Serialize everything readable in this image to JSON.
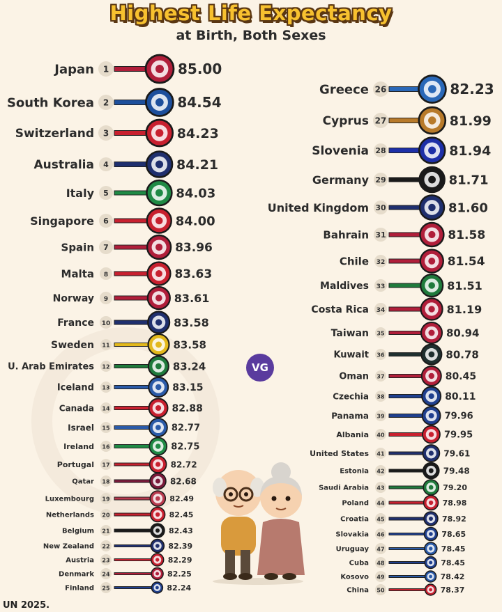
{
  "title": "Highest Life Expectancy",
  "subtitle": "at Birth, Both Sexes",
  "source": "UN 2025.",
  "logo_text": "VG",
  "chart_data": {
    "type": "bar",
    "title": "Highest Life Expectancy",
    "subtitle": "at Birth, Both Sexes",
    "categories": [
      "Japan",
      "South Korea",
      "Switzerland",
      "Australia",
      "Italy",
      "Singapore",
      "Spain",
      "Malta",
      "Norway",
      "France",
      "Sweden",
      "U. Arab Emirates",
      "Iceland",
      "Canada",
      "Israel",
      "Ireland",
      "Portugal",
      "Qatar",
      "Luxembourg",
      "Netherlands",
      "Belgium",
      "New Zealand",
      "Austria",
      "Denmark",
      "Finland",
      "Greece",
      "Cyprus",
      "Slovenia",
      "Germany",
      "United Kingdom",
      "Bahrain",
      "Chile",
      "Maldives",
      "Costa Rica",
      "Taiwan",
      "Kuwait",
      "Oman",
      "Czechia",
      "Panama",
      "Albania",
      "United States",
      "Estonia",
      "Saudi Arabia",
      "Poland",
      "Croatia",
      "Slovakia",
      "Uruguay",
      "Cuba",
      "Kosovo",
      "China"
    ],
    "ranks": [
      "1",
      "2",
      "3",
      "4",
      "5",
      "6",
      "7",
      "8",
      "9",
      "10",
      "11",
      "12",
      "13",
      "14",
      "15",
      "16",
      "17",
      "18",
      "19",
      "20",
      "21",
      "22",
      "23",
      "24",
      "25",
      "26",
      "27",
      "28",
      "29",
      "30",
      "31",
      "32",
      "33",
      "34",
      "35",
      "36",
      "37",
      "38",
      "39",
      "40",
      "41",
      "42",
      "43",
      "44",
      "45",
      "46",
      "47",
      "48",
      "49",
      "50"
    ],
    "values": [
      85.0,
      84.54,
      84.23,
      84.21,
      84.03,
      84.0,
      83.96,
      83.63,
      83.61,
      83.58,
      83.58,
      83.24,
      83.15,
      82.88,
      82.77,
      82.75,
      82.72,
      82.68,
      82.49,
      82.45,
      82.43,
      82.39,
      82.29,
      82.25,
      82.24,
      82.23,
      81.99,
      81.94,
      81.71,
      81.6,
      81.58,
      81.54,
      81.51,
      81.19,
      80.94,
      80.78,
      80.45,
      80.11,
      79.96,
      79.95,
      79.61,
      79.48,
      79.2,
      78.98,
      78.92,
      78.65,
      78.45,
      78.45,
      78.42,
      78.37
    ],
    "value_labels": [
      "85.00",
      "84.54",
      "84.23",
      "84.21",
      "84.03",
      "84.00",
      "83.96",
      "83.63",
      "83.61",
      "83.58",
      "83.58",
      "83.24",
      "83.15",
      "82.88",
      "82.77",
      "82.75",
      "82.72",
      "82.68",
      "82.49",
      "82.45",
      "82.43",
      "82.39",
      "82.29",
      "82.25",
      "82.24",
      "82.23",
      "81.99",
      "81.94",
      "81.71",
      "81.60",
      "81.58",
      "81.54",
      "81.51",
      "81.19",
      "80.94",
      "80.78",
      "80.45",
      "80.11",
      "79.96",
      "79.95",
      "79.61",
      "79.48",
      "79.20",
      "78.98",
      "78.92",
      "78.65",
      "78.45",
      "78.45",
      "78.42",
      "78.37"
    ],
    "flag_colors": [
      "#b01e3a",
      "#1d4f9c",
      "#c8202f",
      "#1f2f6e",
      "#1f8a45",
      "#c8202f",
      "#b01e3a",
      "#c8202f",
      "#b01e3a",
      "#1f2f6e",
      "#e3b91c",
      "#1f7a3c",
      "#2a5aa8",
      "#c8202f",
      "#2a5aa8",
      "#1f8a45",
      "#c8202f",
      "#7a1a3a",
      "#b93a4e",
      "#c8202f",
      "#1a1a1a",
      "#1f2f6e",
      "#c8202f",
      "#b01e3a",
      "#1f3f8e",
      "#2a68b8",
      "#b87a2a",
      "#1d2fa8",
      "#1a1a1a",
      "#1f2f6e",
      "#b01e3a",
      "#b01e3a",
      "#1f7a3c",
      "#b01e3a",
      "#b01e3a",
      "#1f2f2f",
      "#b01e3a",
      "#1f3f8e",
      "#1f3f8e",
      "#c8202f",
      "#1f2f6e",
      "#1a1a1a",
      "#1f7a3c",
      "#c8202f",
      "#1f2f6e",
      "#1f3f8e",
      "#2a5aa8",
      "#1f3f8e",
      "#2a5aa8",
      "#c8202f"
    ]
  }
}
